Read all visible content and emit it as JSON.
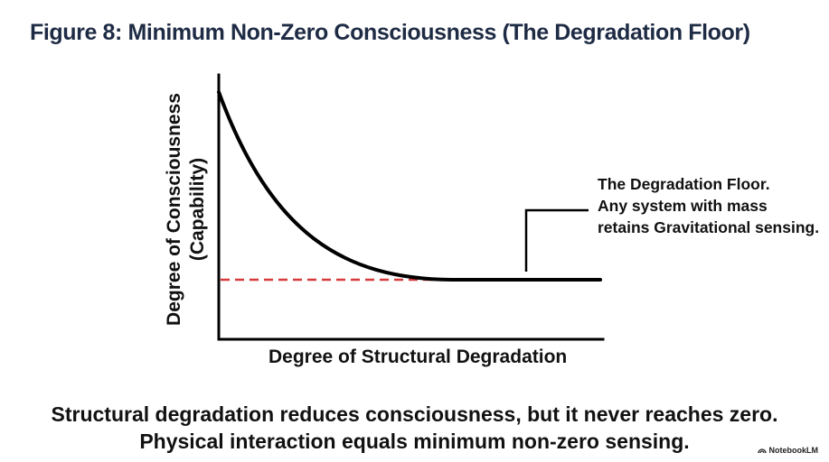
{
  "title": "Figure 8: Minimum Non-Zero Consciousness (The Degradation Floor)",
  "diagram": {
    "y_axis_label_line1": "Degree of Consciousness",
    "y_axis_label_line2": "(Capability)",
    "x_axis_label": "Degree of Structural Degradation",
    "annotation_lines": [
      "The Degradation Floor.",
      "Any system with mass",
      "retains Gravitational sensing."
    ],
    "curve_color": "#000000",
    "floor_line_color": "#d63a3a",
    "floor_line_style": "dashed"
  },
  "caption": {
    "line1": "Structural degradation reduces consciousness, but it never reaches zero.",
    "line2": "Physical interaction equals minimum non-zero sensing."
  },
  "brand": {
    "label": "NotebookLM"
  }
}
